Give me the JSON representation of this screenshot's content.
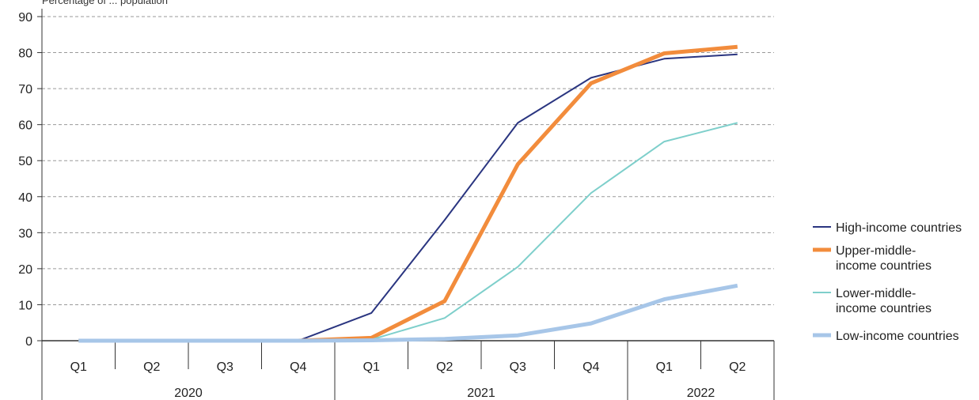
{
  "chart_data": {
    "type": "line",
    "top_label": "Percentage of ... population",
    "ylim": [
      0,
      90
    ],
    "yticks": [
      0,
      10,
      20,
      30,
      40,
      50,
      60,
      70,
      80,
      90
    ],
    "grid": true,
    "legend_position": "right",
    "quarters": [
      "Q1",
      "Q2",
      "Q3",
      "Q4",
      "Q1",
      "Q2",
      "Q3",
      "Q4",
      "Q1",
      "Q2"
    ],
    "years": [
      {
        "label": "2020",
        "quarters": 4
      },
      {
        "label": "2021",
        "quarters": 4
      },
      {
        "label": "2022",
        "quarters": 2
      }
    ],
    "series": [
      {
        "name": "High-income countries",
        "color": "#2a3580",
        "width": 2,
        "values": [
          0,
          0,
          0,
          0,
          7.7,
          33.5,
          60.5,
          73.0,
          78.3,
          79.5
        ]
      },
      {
        "name": "Upper-middle-income countries",
        "color": "#f28c3c",
        "width": 5,
        "values": [
          0,
          0,
          0,
          0,
          0.8,
          11.0,
          49.0,
          71.5,
          79.8,
          81.6
        ]
      },
      {
        "name": "Lower-middle-income countries",
        "color": "#7ecfcb",
        "width": 2,
        "values": [
          0,
          0,
          0,
          0,
          0.3,
          6.3,
          20.5,
          41.0,
          55.3,
          60.5
        ]
      },
      {
        "name": "Low-income countries",
        "color": "#a7c6e8",
        "width": 5,
        "values": [
          0,
          0,
          0,
          0,
          0.1,
          0.5,
          1.5,
          4.8,
          11.5,
          15.3
        ]
      }
    ],
    "legend_lines": [
      [
        "High-income countries"
      ],
      [
        "Upper-middle-",
        "income countries"
      ],
      [
        "Lower-middle-",
        "income countries"
      ],
      [
        "Low-income countries"
      ]
    ]
  }
}
